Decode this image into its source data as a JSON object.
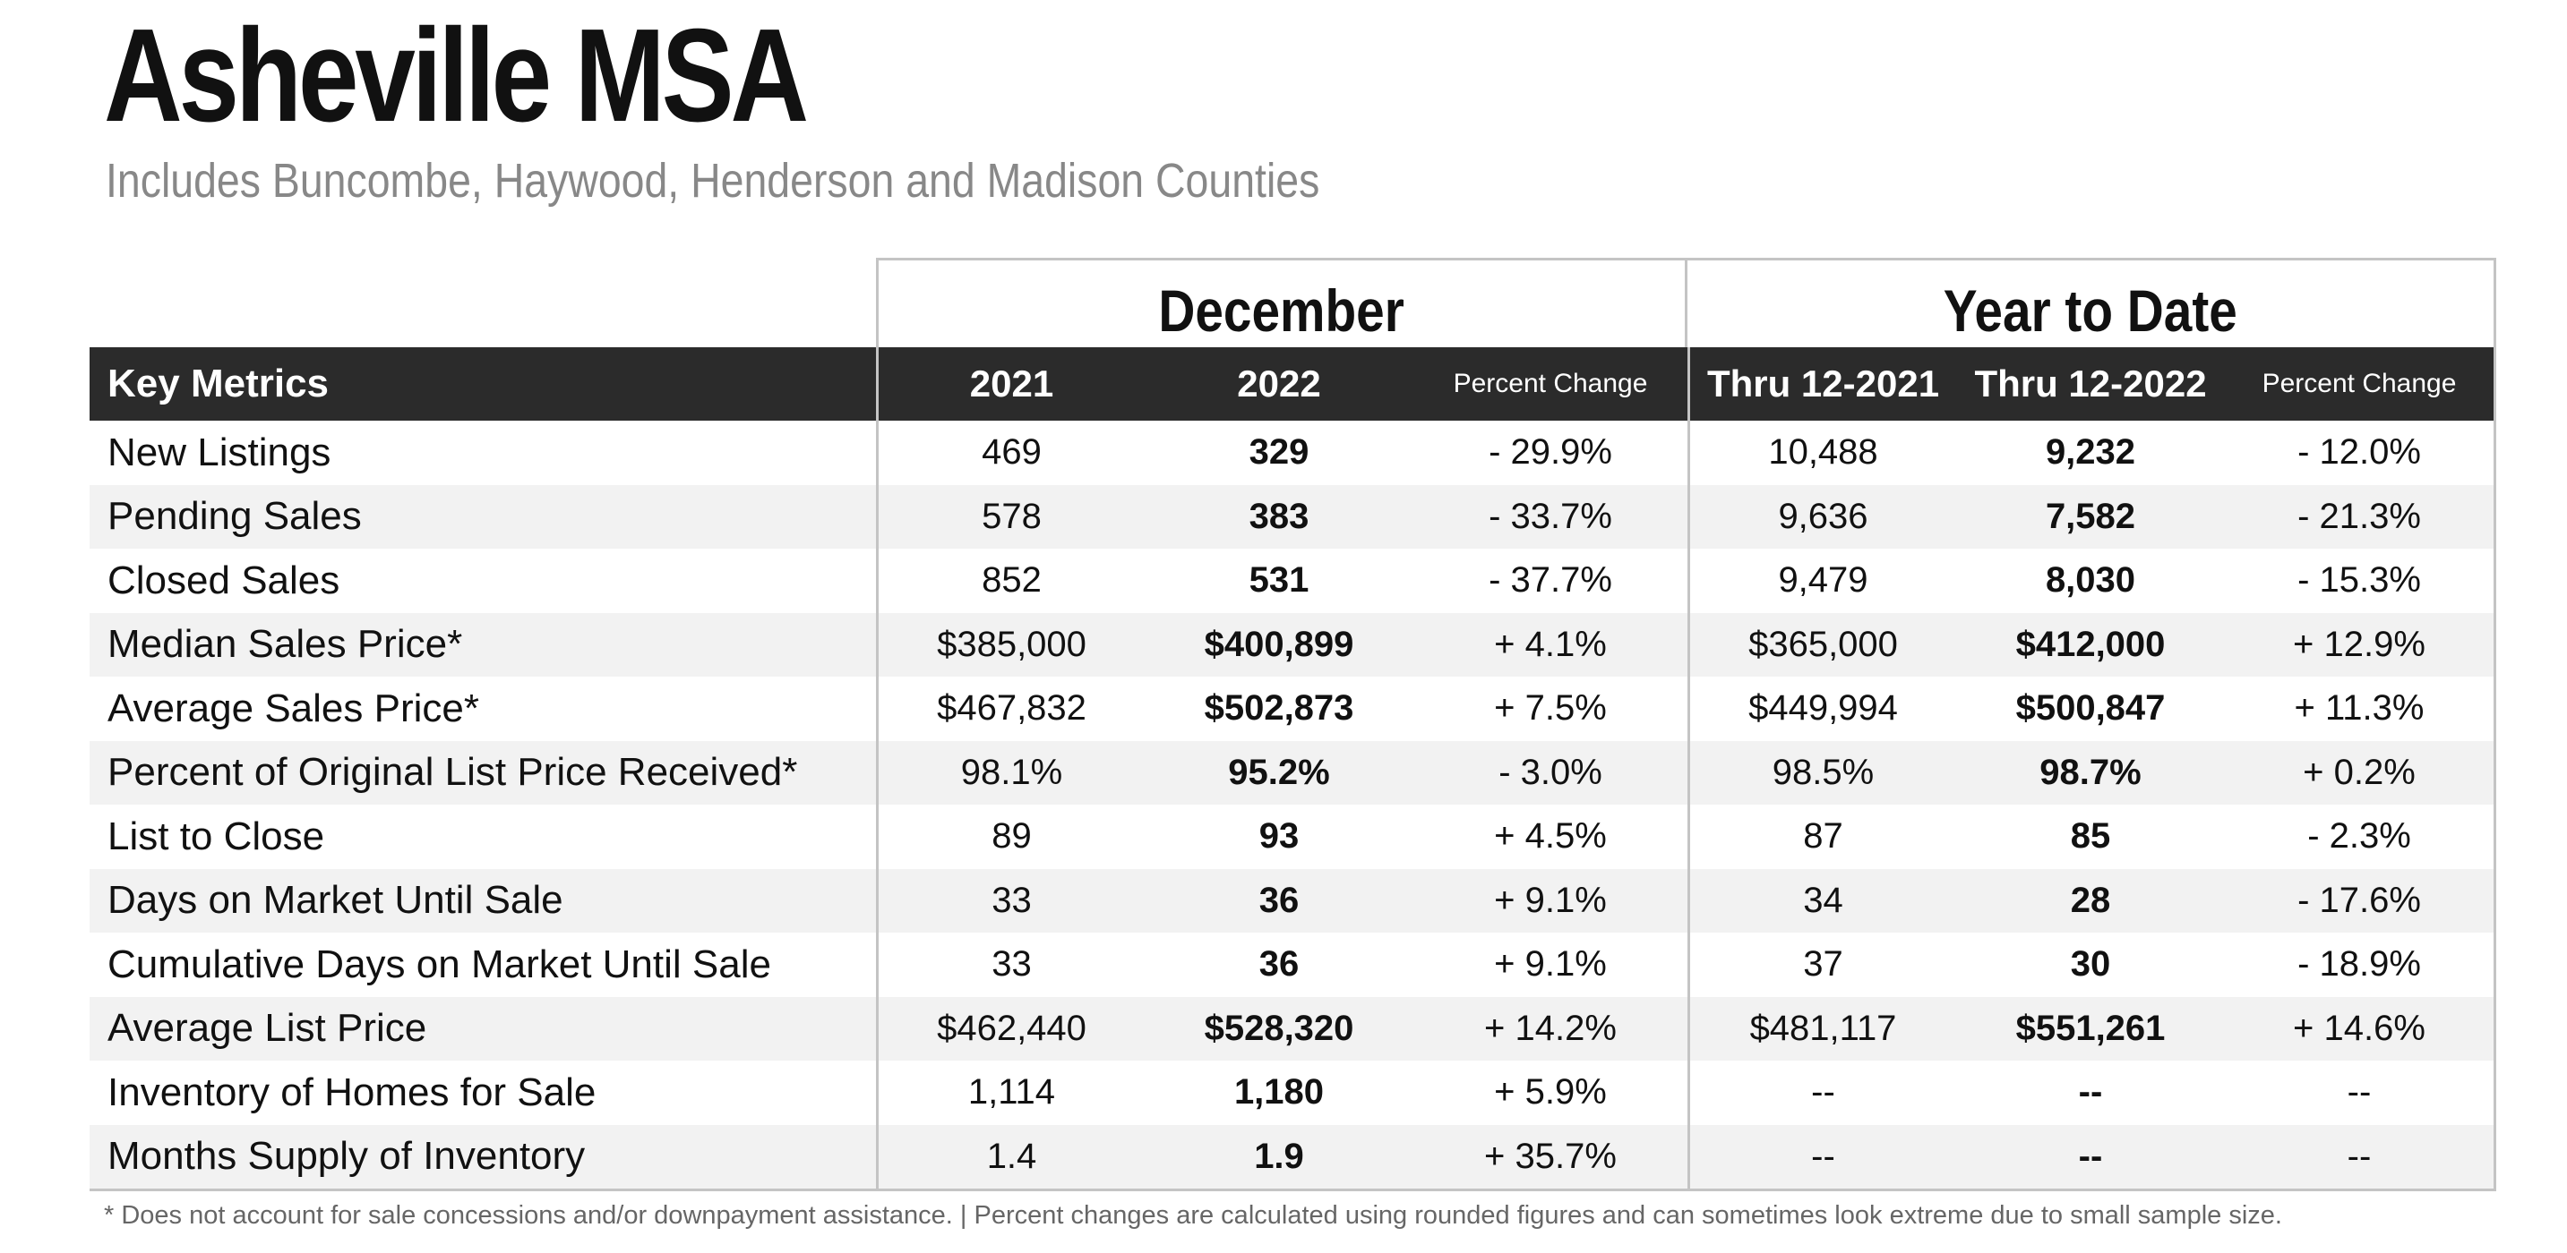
{
  "title": "Asheville MSA",
  "subtitle": "Includes Buncombe, Haywood, Henderson and Madison Counties",
  "groups": {
    "december": "December",
    "ytd": "Year to Date"
  },
  "columns": {
    "metric": "Key Metrics",
    "dec_2021": "2021",
    "dec_2022": "2022",
    "dec_pct": "Percent Change",
    "ytd_2021": "Thru 12-2021",
    "ytd_2022": "Thru 12-2022",
    "ytd_pct": "Percent Change"
  },
  "rows": [
    {
      "metric": "New Listings",
      "dec_2021": "469",
      "dec_2022": "329",
      "dec_pct": "- 29.9%",
      "ytd_2021": "10,488",
      "ytd_2022": "9,232",
      "ytd_pct": "- 12.0%"
    },
    {
      "metric": "Pending Sales",
      "dec_2021": "578",
      "dec_2022": "383",
      "dec_pct": "- 33.7%",
      "ytd_2021": "9,636",
      "ytd_2022": "7,582",
      "ytd_pct": "- 21.3%"
    },
    {
      "metric": "Closed Sales",
      "dec_2021": "852",
      "dec_2022": "531",
      "dec_pct": "- 37.7%",
      "ytd_2021": "9,479",
      "ytd_2022": "8,030",
      "ytd_pct": "- 15.3%"
    },
    {
      "metric": "Median Sales Price*",
      "dec_2021": "$385,000",
      "dec_2022": "$400,899",
      "dec_pct": "+ 4.1%",
      "ytd_2021": "$365,000",
      "ytd_2022": "$412,000",
      "ytd_pct": "+ 12.9%"
    },
    {
      "metric": "Average Sales Price*",
      "dec_2021": "$467,832",
      "dec_2022": "$502,873",
      "dec_pct": "+ 7.5%",
      "ytd_2021": "$449,994",
      "ytd_2022": "$500,847",
      "ytd_pct": "+ 11.3%"
    },
    {
      "metric": "Percent of Original List Price Received*",
      "dec_2021": "98.1%",
      "dec_2022": "95.2%",
      "dec_pct": "- 3.0%",
      "ytd_2021": "98.5%",
      "ytd_2022": "98.7%",
      "ytd_pct": "+ 0.2%"
    },
    {
      "metric": "List to Close",
      "dec_2021": "89",
      "dec_2022": "93",
      "dec_pct": "+ 4.5%",
      "ytd_2021": "87",
      "ytd_2022": "85",
      "ytd_pct": "- 2.3%"
    },
    {
      "metric": "Days on Market Until Sale",
      "dec_2021": "33",
      "dec_2022": "36",
      "dec_pct": "+ 9.1%",
      "ytd_2021": "34",
      "ytd_2022": "28",
      "ytd_pct": "- 17.6%"
    },
    {
      "metric": "Cumulative Days on Market Until Sale",
      "dec_2021": "33",
      "dec_2022": "36",
      "dec_pct": "+ 9.1%",
      "ytd_2021": "37",
      "ytd_2022": "30",
      "ytd_pct": "- 18.9%"
    },
    {
      "metric": "Average List Price",
      "dec_2021": "$462,440",
      "dec_2022": "$528,320",
      "dec_pct": "+ 14.2%",
      "ytd_2021": "$481,117",
      "ytd_2022": "$551,261",
      "ytd_pct": "+ 14.6%"
    },
    {
      "metric": "Inventory of Homes for Sale",
      "dec_2021": "1,114",
      "dec_2022": "1,180",
      "dec_pct": "+ 5.9%",
      "ytd_2021": "--",
      "ytd_2022": "--",
      "ytd_pct": "--"
    },
    {
      "metric": "Months Supply of Inventory",
      "dec_2021": "1.4",
      "dec_2022": "1.9",
      "dec_pct": "+ 35.7%",
      "ytd_2021": "--",
      "ytd_2022": "--",
      "ytd_pct": "--"
    }
  ],
  "footnote": "* Does not account for sale concessions and/or downpayment assistance.  |  Percent changes are calculated using rounded figures and can sometimes look extreme due to small sample size."
}
